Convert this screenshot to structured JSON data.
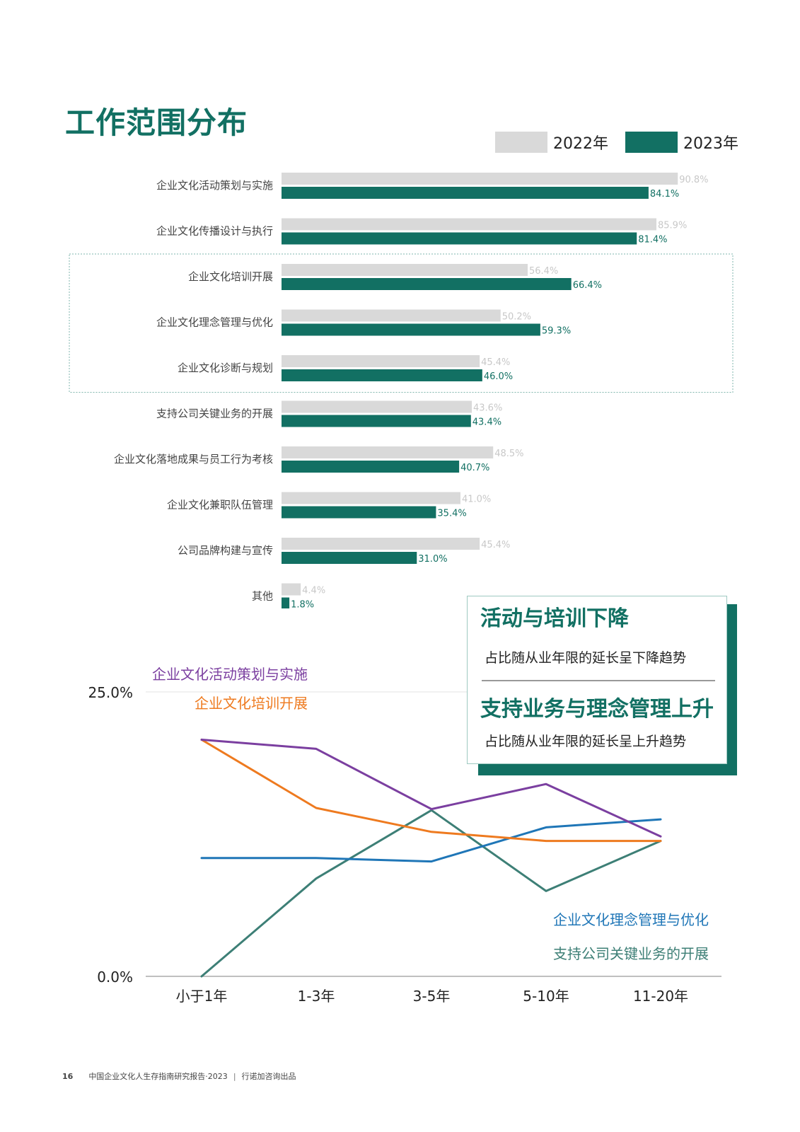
{
  "page_title": "工作范围分布",
  "legend": [
    {
      "label": "2022年",
      "color": "#d9d9d9"
    },
    {
      "label": "2023年",
      "color": "#127063"
    }
  ],
  "callout": {
    "heading1": "活动与培训下降",
    "sub1": "占比随从业年限的延长呈下降趋势",
    "heading2": "支持业务与理念管理上升",
    "sub2": "占比随从业年限的延长呈上升趋势"
  },
  "footer": {
    "page_number": "16",
    "report": "中国企业文化人生存指南研究报告·2023",
    "separator": "|",
    "publisher": "行诺加咨询出品"
  },
  "chart_data": [
    {
      "type": "bar",
      "orientation": "horizontal",
      "categories": [
        "企业文化活动策划与实施",
        "企业文化传播设计与执行",
        "企业文化培训开展",
        "企业文化理念管理与优化",
        "企业文化诊断与规划",
        "支持公司关键业务的开展",
        "企业文化落地成果与员工行为考核",
        "企业文化兼职队伍管理",
        "公司品牌构建与宣传",
        "其他"
      ],
      "series": [
        {
          "name": "2022年",
          "color": "#d9d9d9",
          "values": [
            90.8,
            85.9,
            56.4,
            50.2,
            45.4,
            43.6,
            48.5,
            41.0,
            45.4,
            4.4
          ],
          "labels": [
            "90.8%",
            "85.9%",
            "56.4%",
            "50.2%",
            "45.4%",
            "43.6%",
            "48.5%",
            "41.0%",
            "45.4%",
            "4.4%"
          ]
        },
        {
          "name": "2023年",
          "color": "#127063",
          "values": [
            84.1,
            81.4,
            66.4,
            59.3,
            46.0,
            43.4,
            40.7,
            35.4,
            31.0,
            1.8
          ],
          "labels": [
            "84.1%",
            "81.4%",
            "66.4%",
            "59.3%",
            "46.0%",
            "43.4%",
            "40.7%",
            "35.4%",
            "31.0%",
            "1.8%"
          ]
        }
      ],
      "highlight_categories": [
        "企业文化培训开展",
        "企业文化理念管理与优化",
        "企业文化诊断与规划"
      ]
    },
    {
      "type": "line",
      "x": [
        "小于1年",
        "1-3年",
        "3-5年",
        "5-10年",
        "11-20年"
      ],
      "ylim": [
        0,
        25
      ],
      "y_tick_labels": [
        "25.0%",
        "0.0%"
      ],
      "y_ticks": [
        25,
        0
      ],
      "series": [
        {
          "name": "企业文化活动策划与实施",
          "color": "#7b3fa0",
          "values": [
            20.8,
            20.0,
            14.7,
            16.9,
            12.3
          ]
        },
        {
          "name": "企业文化培训开展",
          "color": "#ee7a1f",
          "values": [
            20.8,
            14.8,
            12.7,
            11.9,
            11.9
          ]
        },
        {
          "name": "企业文化理念管理与优化",
          "color": "#1f76b7",
          "values": [
            10.4,
            10.4,
            10.1,
            13.1,
            13.8
          ]
        },
        {
          "name": "支持公司关键业务的开展",
          "color": "#3d7f76",
          "values": [
            0.0,
            8.6,
            14.6,
            7.5,
            11.9
          ]
        }
      ]
    }
  ]
}
